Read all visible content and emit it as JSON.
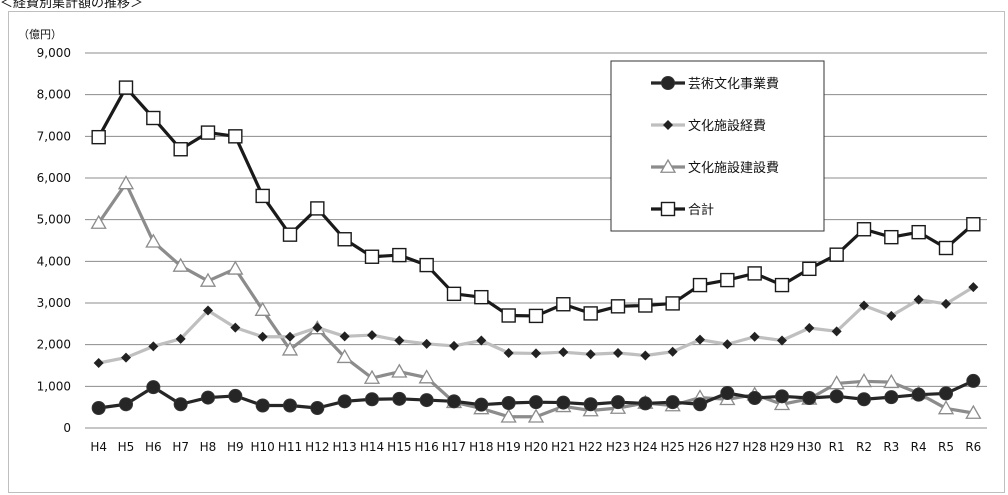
{
  "caption": "＜経費別集計額の推移＞",
  "chart_data": {
    "type": "line",
    "ylabel": "（億円）",
    "ylim": [
      0,
      9000
    ],
    "yticks": [
      "0",
      "1,000",
      "2,000",
      "3,000",
      "4,000",
      "5,000",
      "6,000",
      "7,000",
      "8,000",
      "9,000"
    ],
    "grid": true,
    "legend_position": "top-right",
    "categories": [
      "H4",
      "H5",
      "H6",
      "H7",
      "H8",
      "H9",
      "H10",
      "H11",
      "H12",
      "H13",
      "H14",
      "H15",
      "H16",
      "H17",
      "H18",
      "H19",
      "H20",
      "H21",
      "H22",
      "H23",
      "H24",
      "H25",
      "H26",
      "H27",
      "H28",
      "H29",
      "H30",
      "R1",
      "R2",
      "R3",
      "R4",
      "R5",
      "R6"
    ],
    "series": [
      {
        "name": "芸術文化事業費",
        "color": "#262626",
        "marker": "circle",
        "values": [
          480,
          570,
          980,
          570,
          730,
          770,
          540,
          540,
          480,
          640,
          690,
          700,
          670,
          640,
          560,
          600,
          620,
          610,
          570,
          620,
          590,
          620,
          570,
          840,
          720,
          760,
          720,
          760,
          690,
          740,
          800,
          830,
          1130
        ]
      },
      {
        "name": "文化施設経費",
        "color": "#bfbfbf",
        "marker": "diamond",
        "values": [
          1560,
          1690,
          1960,
          2140,
          2820,
          2410,
          2190,
          2190,
          2410,
          2200,
          2230,
          2100,
          2020,
          1970,
          2100,
          1800,
          1790,
          1820,
          1770,
          1800,
          1740,
          1830,
          2120,
          2010,
          2190,
          2100,
          2400,
          2320,
          2940,
          2690,
          3080,
          2980,
          3380
        ]
      },
      {
        "name": "文化施設建設費",
        "color": "#8c8c8c",
        "marker": "triangle",
        "values": [
          4920,
          5870,
          4470,
          3890,
          3530,
          3820,
          2830,
          1880,
          2390,
          1700,
          1200,
          1350,
          1210,
          620,
          470,
          270,
          270,
          520,
          420,
          480,
          600,
          540,
          730,
          690,
          800,
          570,
          700,
          1070,
          1120,
          1100,
          830,
          470,
          360
        ]
      },
      {
        "name": "合計",
        "color": "#1a1a1a",
        "marker": "square",
        "values": [
          6980,
          8170,
          7440,
          6690,
          7090,
          7000,
          5570,
          4640,
          5270,
          4530,
          4110,
          4150,
          3910,
          3220,
          3140,
          2700,
          2690,
          2970,
          2750,
          2920,
          2940,
          2990,
          3430,
          3550,
          3710,
          3430,
          3820,
          4160,
          4770,
          4580,
          4700,
          4320,
          4890
        ]
      }
    ]
  }
}
